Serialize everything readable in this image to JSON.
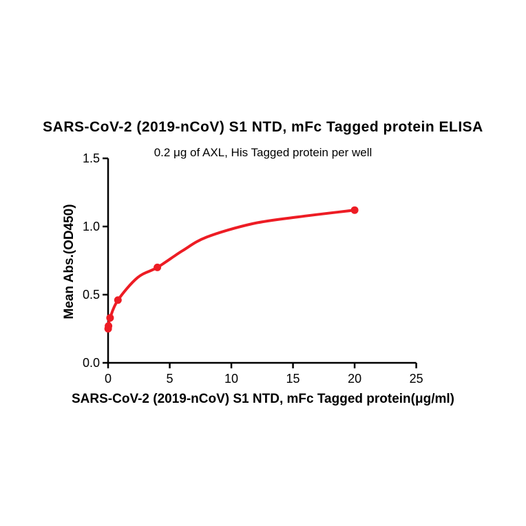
{
  "page": {
    "background": "#ffffff",
    "text_color": "#000000"
  },
  "chart_data": {
    "type": "line",
    "title": "SARS-CoV-2 (2019-nCoV) S1 NTD, mFc Tagged protein ELISA",
    "subtitle": "0.2 μg of AXL, His Tagged protein per well",
    "xlabel": "SARS-CoV-2 (2019-nCoV) S1 NTD, mFc Tagged protein(μg/ml)",
    "ylabel": "Mean Abs.(OD450)",
    "xlim": [
      0,
      25
    ],
    "ylim": [
      0,
      1.5
    ],
    "grid": false,
    "legend_position": "none",
    "x_ticks": {
      "values": [
        0,
        5,
        10,
        15,
        20,
        25
      ],
      "labels": [
        "0",
        "5",
        "10",
        "15",
        "20",
        "25"
      ]
    },
    "y_ticks": {
      "values": [
        0,
        0.5,
        1.0,
        1.5
      ],
      "labels": [
        "0.0",
        "0.5",
        "1.0",
        "1.5"
      ]
    },
    "series": [
      {
        "color": "#ED1C24",
        "marker": "circle",
        "points": [
          {
            "x": 0.0064,
            "y": 0.25
          },
          {
            "x": 0.032,
            "y": 0.27
          },
          {
            "x": 0.16,
            "y": 0.33
          },
          {
            "x": 0.8,
            "y": 0.46
          },
          {
            "x": 4,
            "y": 0.7
          },
          {
            "x": 20,
            "y": 1.12
          }
        ],
        "fit_curve_samples": [
          [
            0.0064,
            0.25
          ],
          [
            0.032,
            0.27
          ],
          [
            0.16,
            0.33
          ],
          [
            0.8,
            0.46
          ],
          [
            2.4,
            0.626
          ],
          [
            4.0,
            0.7
          ],
          [
            6.0,
            0.82
          ],
          [
            8.0,
            0.922
          ],
          [
            11.7,
            1.02
          ],
          [
            15.4,
            1.07
          ],
          [
            20.0,
            1.12
          ]
        ]
      }
    ]
  }
}
